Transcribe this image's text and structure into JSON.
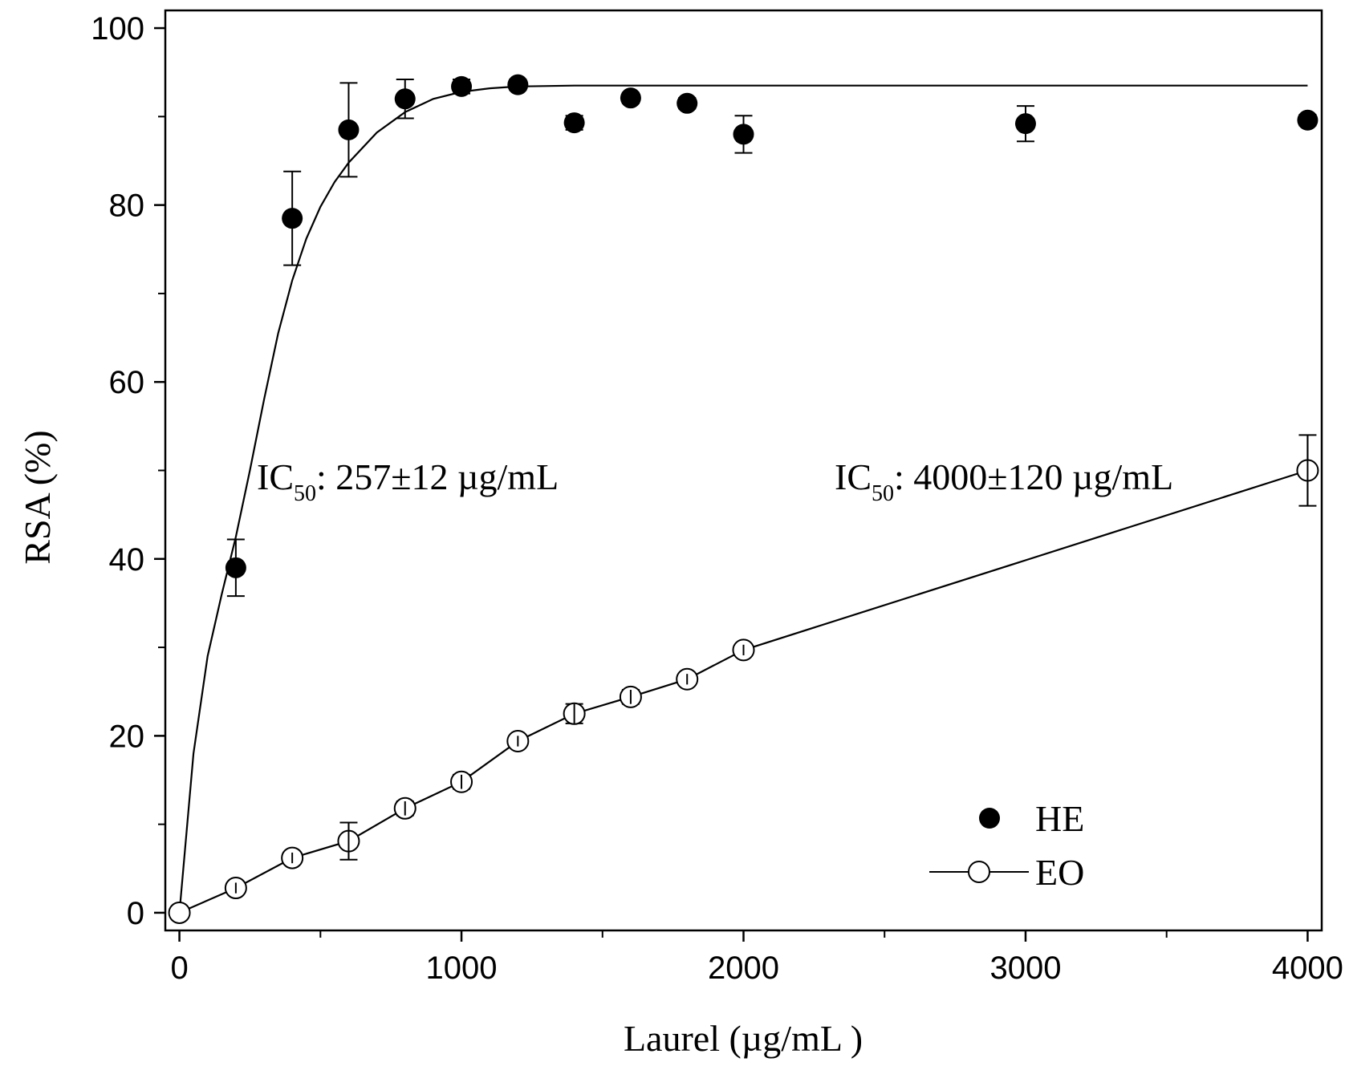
{
  "chart_data": {
    "type": "scatter",
    "xlabel": "Laurel (µg/mL   )",
    "ylabel": "RSA (%)",
    "xlim": [
      -50,
      4050
    ],
    "ylim": [
      -2,
      102
    ],
    "x_ticks": [
      0,
      1000,
      2000,
      3000,
      4000
    ],
    "x_tick_labels": [
      "0",
      "1000",
      "2000",
      "3000",
      "4000"
    ],
    "x_minor_ticks": [
      500,
      1500,
      2500,
      3500
    ],
    "y_ticks": [
      0,
      20,
      40,
      60,
      80,
      100
    ],
    "y_tick_labels": [
      "0",
      "20",
      "40",
      "60",
      "80",
      "100"
    ],
    "y_minor_ticks": [
      10,
      30,
      50,
      70,
      90
    ],
    "grid": false,
    "legend_position": "bottom-right",
    "series": [
      {
        "name": "HE",
        "marker": "filled-circle",
        "line": "fitted-curve",
        "color": "#000000",
        "points": [
          {
            "x": 200,
            "y": 39,
            "err": 3.2
          },
          {
            "x": 400,
            "y": 78.5,
            "err": 5.3
          },
          {
            "x": 600,
            "y": 88.5,
            "err": 5.3
          },
          {
            "x": 800,
            "y": 92,
            "err": 2.2
          },
          {
            "x": 1000,
            "y": 93.4,
            "err": 0.8
          },
          {
            "x": 1200,
            "y": 93.6,
            "err": 0.6
          },
          {
            "x": 1400,
            "y": 89.3,
            "err": 0.8
          },
          {
            "x": 1600,
            "y": 92.1,
            "err": 0.6
          },
          {
            "x": 1800,
            "y": 91.5,
            "err": 0.6
          },
          {
            "x": 2000,
            "y": 88,
            "err": 2.1
          },
          {
            "x": 3000,
            "y": 89.2,
            "err": 2
          },
          {
            "x": 4000,
            "y": 89.6,
            "err": 0.6
          }
        ],
        "fit_curve": {
          "x": [
            0,
            50,
            100,
            150,
            200,
            250,
            300,
            350,
            400,
            450,
            500,
            550,
            600,
            700,
            800,
            900,
            1000,
            1100,
            1200,
            1400,
            1600,
            2000,
            2500,
            3000,
            3500,
            4000
          ],
          "y": [
            0,
            18,
            29,
            36,
            42.5,
            50,
            58,
            65.5,
            71.5,
            76.2,
            79.8,
            82.6,
            84.8,
            88.2,
            90.5,
            92,
            92.8,
            93.2,
            93.4,
            93.5,
            93.5,
            93.5,
            93.5,
            93.5,
            93.5,
            93.5
          ]
        }
      },
      {
        "name": "EO",
        "marker": "open-circle",
        "line": "solid",
        "color": "#000000",
        "points": [
          {
            "x": 0,
            "y": 0,
            "err": 0
          },
          {
            "x": 200,
            "y": 2.8,
            "err": 0.6
          },
          {
            "x": 400,
            "y": 6.2,
            "err": 0.6
          },
          {
            "x": 600,
            "y": 8.1,
            "err": 2.1
          },
          {
            "x": 800,
            "y": 11.8,
            "err": 0.8
          },
          {
            "x": 1000,
            "y": 14.8,
            "err": 0.8
          },
          {
            "x": 1200,
            "y": 19.4,
            "err": 0.6
          },
          {
            "x": 1400,
            "y": 22.5,
            "err": 1.1
          },
          {
            "x": 1600,
            "y": 24.4,
            "err": 0.8
          },
          {
            "x": 1800,
            "y": 26.4,
            "err": 0.6
          },
          {
            "x": 2000,
            "y": 29.7,
            "err": 0.6
          },
          {
            "x": 4000,
            "y": 50,
            "err": 4
          }
        ]
      }
    ],
    "annotations": [
      {
        "id": "he-ic50",
        "prefix": "IC",
        "subscript": "50",
        "text": ":  257±12 µg/mL",
        "x": 280,
        "y": 50
      },
      {
        "id": "eo-ic50",
        "prefix": "IC",
        "subscript": "50",
        "text": ": 4000±120 µg/mL",
        "x": 2300,
        "y": 50
      }
    ]
  }
}
